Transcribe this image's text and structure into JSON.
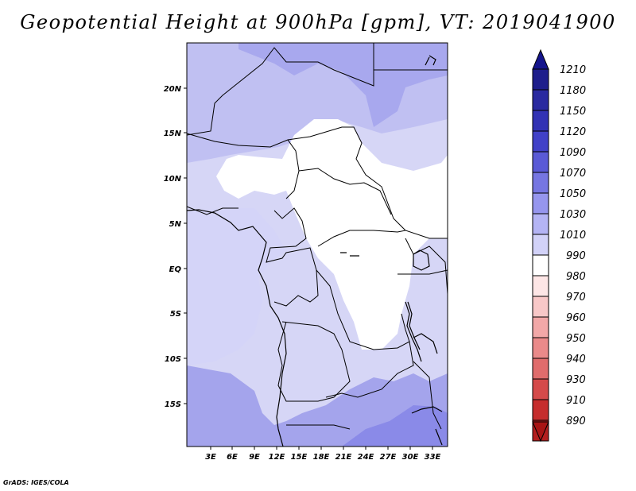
{
  "title": "Geopotential Height at 900hPa [gpm], VT: 2019041900",
  "credit": "GrADS: IGES/COLA",
  "map": {
    "y_ticks": [
      "20N",
      "15N",
      "10N",
      "5N",
      "EQ",
      "5S",
      "10S",
      "15S"
    ],
    "x_ticks": [
      "3E",
      "6E",
      "9E",
      "12E",
      "15E",
      "18E",
      "21E",
      "24E",
      "27E",
      "30E",
      "33E"
    ]
  },
  "colorbar": {
    "levels": [
      {
        "label": "1210",
        "color": "#1e1e8c"
      },
      {
        "label": "1180",
        "color": "#2a2aa0"
      },
      {
        "label": "1150",
        "color": "#3232b4"
      },
      {
        "label": "1120",
        "color": "#4141c8"
      },
      {
        "label": "1090",
        "color": "#5a5ad6"
      },
      {
        "label": "1070",
        "color": "#7676e2"
      },
      {
        "label": "1050",
        "color": "#9696ee"
      },
      {
        "label": "1030",
        "color": "#b4b4f4"
      },
      {
        "label": "1010",
        "color": "#d2d2f8"
      },
      {
        "label": "990",
        "color": "#ffffff"
      },
      {
        "label": "980",
        "color": "#fde6e6"
      },
      {
        "label": "970",
        "color": "#f8c8c8"
      },
      {
        "label": "960",
        "color": "#f2a8a8"
      },
      {
        "label": "950",
        "color": "#ea8a8a"
      },
      {
        "label": "940",
        "color": "#e06c6c"
      },
      {
        "label": "930",
        "color": "#d54a4a"
      },
      {
        "label": "910",
        "color": "#c62e2e"
      },
      {
        "label": "890",
        "color": "#b41e1e"
      }
    ],
    "top_arrow_color": "#14148c",
    "bottom_arrow_color": "#a81414"
  }
}
